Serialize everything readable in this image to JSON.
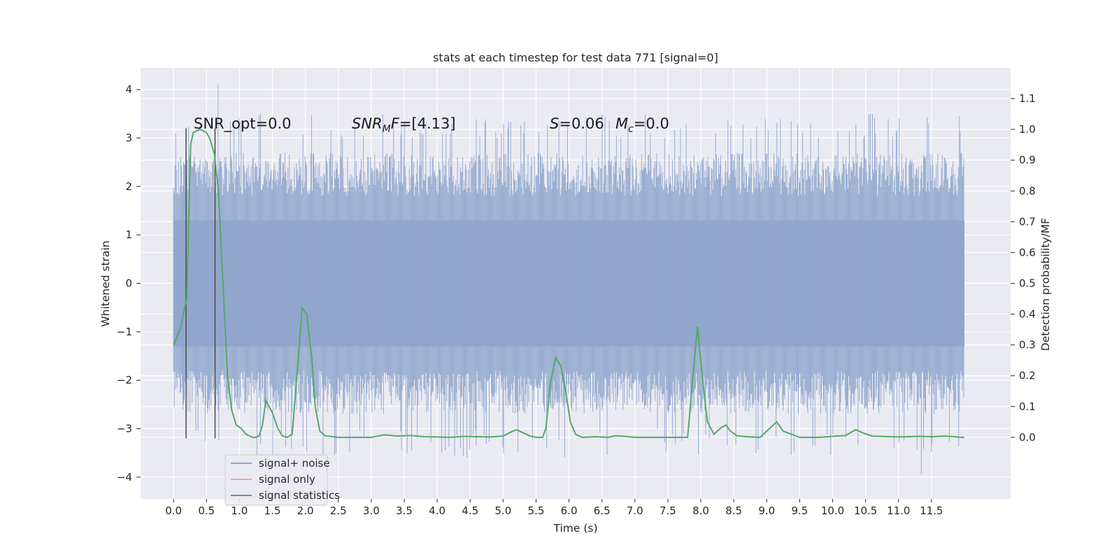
{
  "chart_data": {
    "type": "line",
    "title": "stats at each timestep for test data 771 [signal=0]",
    "xlabel": "Time (s)",
    "ylabel": "Whitened strain",
    "y2label": "Detection probability/MF",
    "xlim": [
      -0.5,
      12.7
    ],
    "ylim": [
      -4.45,
      4.45
    ],
    "y2lim": [
      -0.2,
      1.2
    ],
    "xticks": [
      0.0,
      0.5,
      1.0,
      1.5,
      2.0,
      2.5,
      3.0,
      3.5,
      4.0,
      4.5,
      5.0,
      5.5,
      6.0,
      6.5,
      7.0,
      7.5,
      8.0,
      8.5,
      9.0,
      9.5,
      10.0,
      10.5,
      11.0,
      11.5
    ],
    "xtick_labels": [
      "0.0",
      "0.5",
      "1.0",
      "1.5",
      "2.0",
      "2.5",
      "3.0",
      "3.5",
      "4.0",
      "4.5",
      "5.0",
      "5.5",
      "6.0",
      "6.5",
      "7.0",
      "7.5",
      "8.0",
      "8.5",
      "9.0",
      "9.5",
      "10.0",
      "10.5",
      "11.0",
      "11.5"
    ],
    "yticks": [
      4,
      3,
      2,
      1,
      0,
      -1,
      -2,
      -3,
      -4
    ],
    "ytick_labels": [
      "4",
      "3",
      "2",
      "1",
      "0",
      "−1",
      "−2",
      "−3",
      "−4"
    ],
    "y2ticks": [
      1.1,
      1.0,
      0.9,
      0.8,
      0.7,
      0.6,
      0.5,
      0.4,
      0.3,
      0.2,
      0.1,
      0.0
    ],
    "y2tick_labels": [
      "1.1",
      "1.0",
      "0.9",
      "0.8",
      "0.7",
      "0.6",
      "0.5",
      "0.4",
      "0.3",
      "0.2",
      "0.1",
      "0.0"
    ],
    "grid": true,
    "legend_position": "bottom-left",
    "annotations": [
      {
        "text": "SNR_opt=0.0",
        "x": 0.2,
        "y": 3.3
      },
      {
        "text": "SNR_MF=[4.13]",
        "x": 2.6,
        "y": 3.3
      },
      {
        "text": "S=0.06",
        "x": 5.6,
        "y": 3.3
      },
      {
        "text": "M_c=0.0",
        "x": 6.6,
        "y": 3.3
      }
    ],
    "vlines": [
      {
        "x": 0.19,
        "y_from": -3.2,
        "y_to": 3.2
      },
      {
        "x": 0.63,
        "y_from": -3.2,
        "y_to": 3.2
      }
    ],
    "series": [
      {
        "name": "signal+ noise",
        "color": "#8fa5cc",
        "kind": "noise-band",
        "duration_s": 12.0,
        "band_inner": [
          -1.3,
          1.3
        ],
        "typical_peak_range": [
          1.8,
          3.0
        ],
        "max": 4.1,
        "min": -3.95
      },
      {
        "name": "signal only",
        "color": "#dd8452",
        "values": []
      },
      {
        "name": "signal statistics",
        "color": "#55a868",
        "axis": "y2",
        "x": [
          0.0,
          0.1,
          0.2,
          0.26,
          0.3,
          0.4,
          0.5,
          0.55,
          0.62,
          0.68,
          0.75,
          0.82,
          0.88,
          0.95,
          1.02,
          1.1,
          1.2,
          1.25,
          1.3,
          1.35,
          1.4,
          1.5,
          1.58,
          1.65,
          1.72,
          1.8,
          1.88,
          1.95,
          2.02,
          2.1,
          2.15,
          2.22,
          2.3,
          2.5,
          3.0,
          3.2,
          3.4,
          3.6,
          3.8,
          4.0,
          4.2,
          4.4,
          4.6,
          4.8,
          5.0,
          5.1,
          5.2,
          5.3,
          5.4,
          5.5,
          5.6,
          5.65,
          5.72,
          5.8,
          5.88,
          5.95,
          6.02,
          6.1,
          6.2,
          6.4,
          6.6,
          6.7,
          6.8,
          7.0,
          7.5,
          7.8,
          7.88,
          7.95,
          8.02,
          8.1,
          8.2,
          8.3,
          8.38,
          8.45,
          8.55,
          8.7,
          8.9,
          9.05,
          9.15,
          9.25,
          9.5,
          9.8,
          10.0,
          10.2,
          10.35,
          10.45,
          10.6,
          11.0,
          11.3,
          11.5,
          11.7,
          11.85,
          11.95,
          12.0
        ],
        "y": [
          0.3,
          0.35,
          0.45,
          0.95,
          0.99,
          1.0,
          0.99,
          0.97,
          0.92,
          0.8,
          0.5,
          0.2,
          0.09,
          0.04,
          0.03,
          0.01,
          0.0,
          0.0,
          0.005,
          0.04,
          0.12,
          0.08,
          0.03,
          0.005,
          0.0,
          0.01,
          0.22,
          0.42,
          0.4,
          0.25,
          0.1,
          0.02,
          0.005,
          0.0,
          0.0,
          0.008,
          0.004,
          0.006,
          0.002,
          0.001,
          0.0,
          0.003,
          0.002,
          0.001,
          0.004,
          0.015,
          0.025,
          0.015,
          0.005,
          0.0,
          0.0,
          0.03,
          0.18,
          0.26,
          0.23,
          0.15,
          0.05,
          0.01,
          0.0,
          0.002,
          0.0,
          0.005,
          0.004,
          0.0,
          0.0,
          0.0,
          0.2,
          0.36,
          0.2,
          0.05,
          0.01,
          0.03,
          0.04,
          0.02,
          0.005,
          0.002,
          0.0,
          0.03,
          0.05,
          0.02,
          0.0,
          0.0,
          0.003,
          0.006,
          0.025,
          0.015,
          0.004,
          0.001,
          0.003,
          0.002,
          0.004,
          0.002,
          0.0,
          0.0
        ]
      }
    ]
  }
}
